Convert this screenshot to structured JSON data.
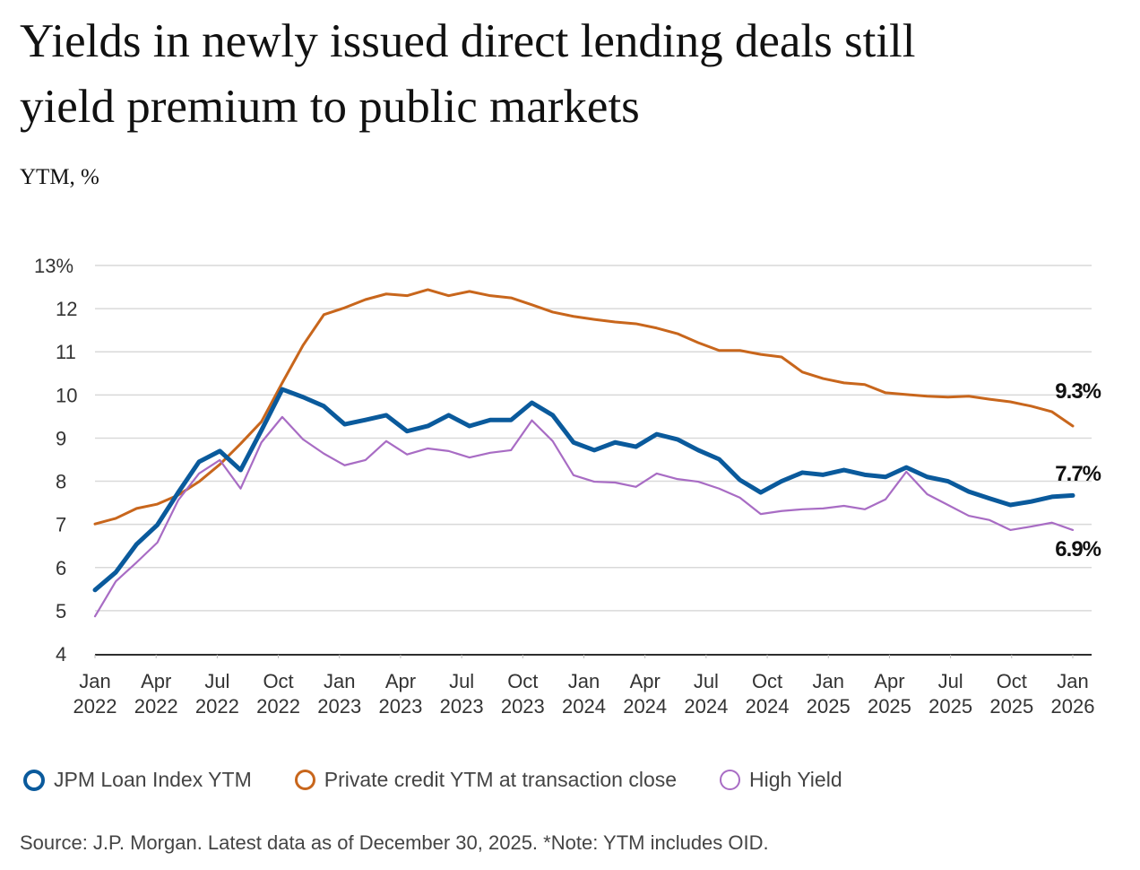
{
  "title_line1": "Yields in newly issued direct lending deals still",
  "title_line2": "yield premium to public markets",
  "unit_label": "YTM, %",
  "source": "Source: J.P. Morgan. Latest data as of December 30, 2025. *Note: YTM includes OID.",
  "chart_data": {
    "type": "line",
    "title": "Yields in newly issued direct lending deals still yield premium to public markets",
    "ylabel": "YTM, %",
    "xlabel": "",
    "ylim": [
      4,
      13
    ],
    "yticks": [
      "4",
      "5",
      "6",
      "7",
      "8",
      "9",
      "10",
      "11",
      "12",
      "13%"
    ],
    "xticks": [
      [
        "Jan",
        "2022"
      ],
      [
        "Apr",
        "2022"
      ],
      [
        "Jul",
        "2022"
      ],
      [
        "Oct",
        "2022"
      ],
      [
        "Jan",
        "2023"
      ],
      [
        "Apr",
        "2023"
      ],
      [
        "Jul",
        "2023"
      ],
      [
        "Oct",
        "2023"
      ],
      [
        "Jan",
        "2024"
      ],
      [
        "Apr",
        "2024"
      ],
      [
        "Jul",
        "2024"
      ],
      [
        "Oct",
        "2024"
      ],
      [
        "Jan",
        "2025"
      ],
      [
        "Apr",
        "2025"
      ],
      [
        "Jul",
        "2025"
      ],
      [
        "Oct",
        "2025"
      ],
      [
        "Jan",
        "2026"
      ]
    ],
    "x_start": "Jan 2022",
    "x_frequency": "monthly",
    "grid": true,
    "legend_position": "bottom",
    "series": [
      {
        "name": "JPM Loan Index YTM",
        "color": "#0a5a9c",
        "end_label": "7.7%",
        "values": [
          5.48,
          5.89,
          6.54,
          6.99,
          7.74,
          8.45,
          8.7,
          8.26,
          9.18,
          10.13,
          9.95,
          9.74,
          9.32,
          9.42,
          9.53,
          9.16,
          9.28,
          9.53,
          9.28,
          9.42,
          9.42,
          9.82,
          9.53,
          8.9,
          8.72,
          8.9,
          8.8,
          9.09,
          8.97,
          8.72,
          8.51,
          8.03,
          7.74,
          8.0,
          8.2,
          8.15,
          8.26,
          8.15,
          8.1,
          8.32,
          8.1,
          8.0,
          7.76,
          7.6,
          7.45,
          7.53,
          7.64,
          7.67
        ]
      },
      {
        "name": "Private credit YTM at transaction close",
        "color": "#c8661c",
        "end_label": "9.3%",
        "values": [
          7.01,
          7.14,
          7.37,
          7.47,
          7.68,
          7.99,
          8.39,
          8.87,
          9.38,
          10.28,
          11.15,
          11.86,
          12.02,
          12.21,
          12.34,
          12.3,
          12.44,
          12.3,
          12.4,
          12.3,
          12.25,
          12.09,
          11.92,
          11.82,
          11.75,
          11.69,
          11.65,
          11.55,
          11.42,
          11.21,
          11.03,
          11.03,
          10.94,
          10.88,
          10.53,
          10.38,
          10.28,
          10.24,
          10.05,
          10.01,
          9.97,
          9.95,
          9.97,
          9.9,
          9.84,
          9.74,
          9.61,
          9.28
        ]
      },
      {
        "name": "High Yield",
        "color": "#a86cc4",
        "end_label": "6.9%",
        "values": [
          4.87,
          5.68,
          6.12,
          6.58,
          7.56,
          8.18,
          8.49,
          7.83,
          8.9,
          9.49,
          8.97,
          8.64,
          8.37,
          8.49,
          8.93,
          8.62,
          8.76,
          8.7,
          8.55,
          8.66,
          8.72,
          9.41,
          8.93,
          8.14,
          7.99,
          7.97,
          7.87,
          8.18,
          8.05,
          7.99,
          7.83,
          7.62,
          7.24,
          7.31,
          7.35,
          7.37,
          7.43,
          7.35,
          7.58,
          8.22,
          7.7,
          7.45,
          7.2,
          7.1,
          6.87,
          6.95,
          7.04,
          6.87
        ]
      }
    ]
  }
}
